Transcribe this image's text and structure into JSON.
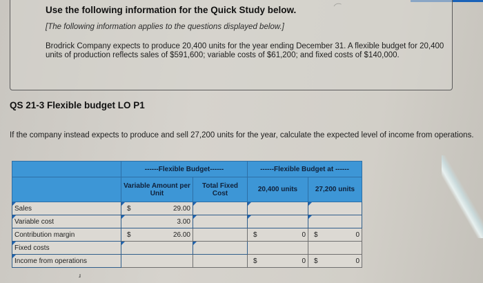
{
  "info": {
    "title": "Use the following information for the Quick Study below.",
    "subtitle": "[The following information applies to the questions displayed below.]",
    "body": "Brodrick Company expects to produce 20,400 units for the year ending December 31. A flexible budget for 20,400 units of production reflects sales of $591,600; variable costs of $61,200; and fixed costs of $140,000."
  },
  "question": {
    "title": "QS 21-3 Flexible budget LO P1",
    "text": "If the company instead expects to produce and sell 27,200 units for the year, calculate the expected level of income from operations."
  },
  "table": {
    "header_group_1": "------Flexible Budget------",
    "header_group_2": "------Flexible Budget at ------",
    "columns": {
      "variable_amount": "Variable Amount per Unit",
      "total_fixed": "Total Fixed Cost",
      "units_1": "20,400 units",
      "units_2": "27,200 units"
    },
    "rows": [
      {
        "label": "Sales",
        "var_dollar": "$",
        "var_value": "29.00",
        "fixed_value": "",
        "u1_dollar": "",
        "u1_value": "",
        "u2_dollar": "",
        "u2_value": ""
      },
      {
        "label": "Variable cost",
        "var_dollar": "",
        "var_value": "3.00",
        "fixed_value": "",
        "u1_dollar": "",
        "u1_value": "",
        "u2_dollar": "",
        "u2_value": ""
      },
      {
        "label": "Contribution margin",
        "var_dollar": "$",
        "var_value": "26.00",
        "fixed_value": "",
        "u1_dollar": "$",
        "u1_value": "0",
        "u2_dollar": "$",
        "u2_value": "0"
      },
      {
        "label": "Fixed costs",
        "var_dollar": "",
        "var_value": "",
        "fixed_value": "",
        "u1_dollar": "",
        "u1_value": "",
        "u2_dollar": "",
        "u2_value": ""
      },
      {
        "label": "Income from operations",
        "var_dollar": "",
        "var_value": "",
        "fixed_value": "",
        "u1_dollar": "$",
        "u1_value": "0",
        "u2_dollar": "$",
        "u2_value": "0"
      }
    ]
  },
  "colors": {
    "header_blue": "#3d96d6",
    "cell_bg": "#dcd9d3",
    "input_border": "#2f5d8a"
  }
}
